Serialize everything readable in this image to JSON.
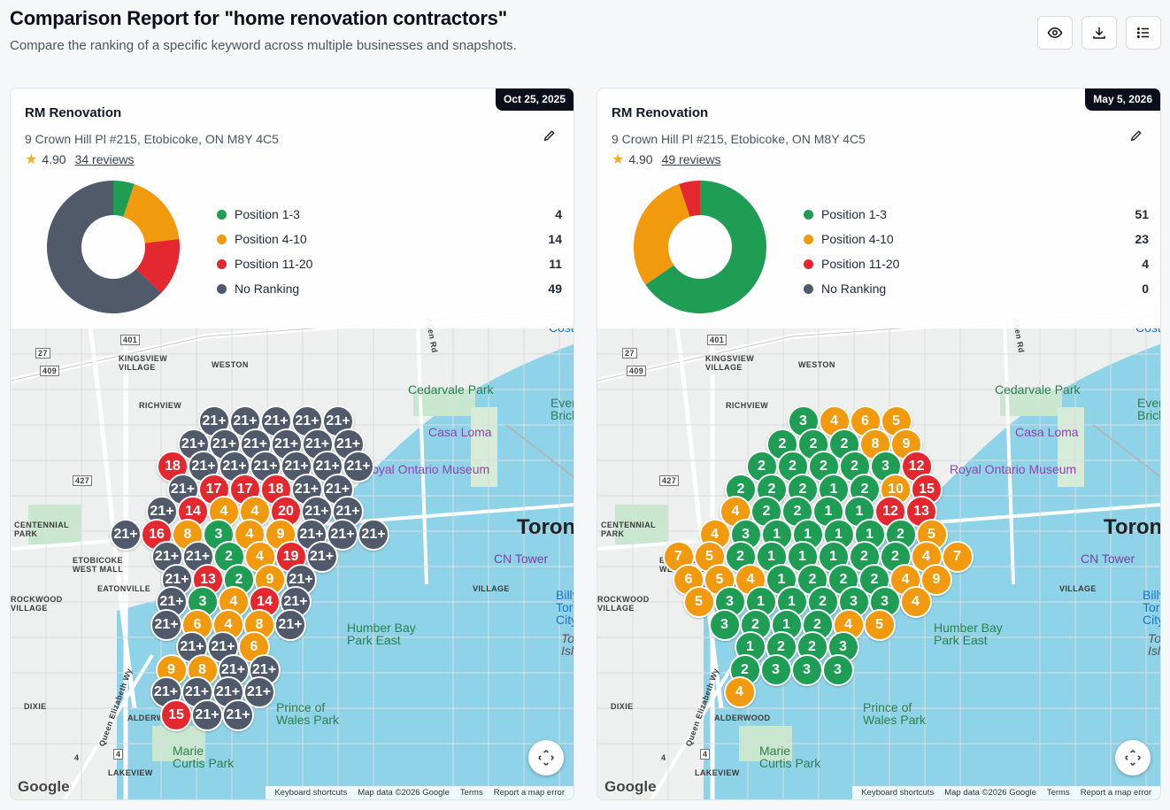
{
  "page": {
    "title": "Comparison Report for \"home renovation contractors\"",
    "subtitle": "Compare the ranking of a specific keyword across multiple businesses and snapshots."
  },
  "toolbar": {
    "view_icon": "eye-icon",
    "download_icon": "download-icon",
    "list_icon": "list-icon"
  },
  "colors": {
    "top3": "#1f9d55",
    "top10": "#f29a0e",
    "top20": "#e3282f",
    "none": "#515a6b"
  },
  "legend_labels": [
    "Position 1-3",
    "Position 4-10",
    "Position 11-20",
    "No Ranking"
  ],
  "map_labels": {
    "kingsview": "KINGSVIEW\nVILLAGE",
    "weston": "WESTON",
    "richview": "RICHVIEW",
    "centennial": "CENTENNIAL\nPARK",
    "etobicoke": "ETOBICOKE\nWEST MALL",
    "eatonville": "EATONVILLE",
    "rockwood": "ROCKWOOD\nVILLAGE",
    "dixie": "DIXIE",
    "alderwood": "ALDERWOOD",
    "lakeview": "LAKEVIEW",
    "village": "VILLAGE",
    "cedarvale": "Cedarvale Park",
    "casa_loma": "Casa Loma",
    "museum": "Royal Ontario Museum",
    "cn_tower": "CN Tower",
    "toronto": "Toronto",
    "humber": "Humber Bay\nPark East",
    "prince": "Prince of\nWales Park",
    "marie": "Marie\nCurtis Park",
    "queen": "Queen Elizabeth Wy",
    "evergreen": "Evergreen\nBrick Works",
    "billy": "Billy\nToronto\nCity",
    "toronto_island": "Toronto\nIsland",
    "costi": "Costi",
    "allen_rd": "Allen Rd",
    "hwy401": "401",
    "hwy27": "27",
    "hwy409": "409",
    "hwy427": "427",
    "hwy4": "4"
  },
  "map_footer": {
    "google": "Google",
    "shortcuts": "Keyboard shortcuts",
    "data": "Map data ©2026 Google",
    "terms": "Terms",
    "report": "Report a map error"
  },
  "snapshots": [
    {
      "date": "Oct 25, 2025",
      "business": "RM Renovation",
      "address": "9 Crown Hill Pl #215, Etobicoke, ON M8Y 4C5",
      "rating": "4.90",
      "reviews": "34 reviews",
      "counts": [
        4,
        14,
        11,
        49
      ],
      "counts_text": [
        "4",
        "14",
        "11",
        "49"
      ],
      "pins": [
        [
          "21+",
          "n"
        ],
        [
          "21+",
          "n"
        ],
        [
          "21+",
          "n"
        ],
        [
          "21+",
          "n"
        ],
        [
          "21+",
          "n"
        ],
        [
          "21+",
          "n"
        ],
        [
          "21+",
          "n"
        ],
        [
          "21+",
          "n"
        ],
        [
          "21+",
          "n"
        ],
        [
          "21+",
          "n"
        ],
        [
          "21+",
          "n"
        ],
        [
          "18",
          "r"
        ],
        [
          "21+",
          "n"
        ],
        [
          "21+",
          "n"
        ],
        [
          "21+",
          "n"
        ],
        [
          "21+",
          "n"
        ],
        [
          "21+",
          "n"
        ],
        [
          "21+",
          "n"
        ],
        [
          "21+",
          "n"
        ],
        [
          "17",
          "r"
        ],
        [
          "17",
          "r"
        ],
        [
          "18",
          "r"
        ],
        [
          "21+",
          "n"
        ],
        [
          "21+",
          "n"
        ],
        [
          "21+",
          "n"
        ],
        [
          "14",
          "r"
        ],
        [
          "4",
          "o"
        ],
        [
          "4",
          "o"
        ],
        [
          "20",
          "r"
        ],
        [
          "21+",
          "n"
        ],
        [
          "21+",
          "n"
        ],
        [
          "21+",
          "n"
        ],
        [
          "16",
          "r"
        ],
        [
          "8",
          "o"
        ],
        [
          "3",
          "g"
        ],
        [
          "4",
          "o"
        ],
        [
          "9",
          "o"
        ],
        [
          "21+",
          "n"
        ],
        [
          "21+",
          "n"
        ],
        [
          "21+",
          "n"
        ],
        [
          "21+",
          "n"
        ],
        [
          "21+",
          "n"
        ],
        [
          "2",
          "g"
        ],
        [
          "4",
          "o"
        ],
        [
          "19",
          "r"
        ],
        [
          "21+",
          "n"
        ],
        [
          "21+",
          "n"
        ],
        [
          "13",
          "r"
        ],
        [
          "2",
          "g"
        ],
        [
          "9",
          "o"
        ],
        [
          "21+",
          "n"
        ],
        [
          "21+",
          "n"
        ],
        [
          "3",
          "g"
        ],
        [
          "4",
          "o"
        ],
        [
          "14",
          "r"
        ],
        [
          "21+",
          "n"
        ],
        [
          "21+",
          "n"
        ],
        [
          "6",
          "o"
        ],
        [
          "4",
          "o"
        ],
        [
          "8",
          "o"
        ],
        [
          "21+",
          "n"
        ],
        [
          "21+",
          "n"
        ],
        [
          "21+",
          "n"
        ],
        [
          "6",
          "o"
        ],
        [
          "9",
          "o"
        ],
        [
          "8",
          "o"
        ],
        [
          "21+",
          "n"
        ],
        [
          "21+",
          "n"
        ],
        [
          "21+",
          "n"
        ],
        [
          "21+",
          "n"
        ],
        [
          "21+",
          "n"
        ],
        [
          "21+",
          "n"
        ],
        [
          "15",
          "r"
        ],
        [
          "21+",
          "n"
        ],
        [
          "21+",
          "n"
        ],
        [
          "21+",
          "n"
        ],
        [
          "21+",
          "n"
        ],
        [
          "21+",
          "n"
        ],
        [
          "21+",
          "n"
        ],
        [
          "21+",
          "n"
        ]
      ]
    },
    {
      "date": "May 5, 2026",
      "business": "RM Renovation",
      "address": "9 Crown Hill Pl #215, Etobicoke, ON M8Y 4C5",
      "rating": "4.90",
      "reviews": "49 reviews",
      "counts": [
        51,
        23,
        4,
        0
      ],
      "counts_text": [
        "51",
        "23",
        "4",
        "0"
      ],
      "pins": [
        [
          "3",
          "g"
        ],
        [
          "4",
          "o"
        ],
        [
          "6",
          "o"
        ],
        [
          "5",
          "o"
        ],
        [
          "2",
          "g"
        ],
        [
          "2",
          "g"
        ],
        [
          "2",
          "g"
        ],
        [
          "8",
          "o"
        ],
        [
          "9",
          "o"
        ],
        [
          "2",
          "g"
        ],
        [
          "2",
          "g"
        ],
        [
          "2",
          "g"
        ],
        [
          "2",
          "g"
        ],
        [
          "3",
          "g"
        ],
        [
          "12",
          "r"
        ],
        [
          "2",
          "g"
        ],
        [
          "2",
          "g"
        ],
        [
          "2",
          "g"
        ],
        [
          "1",
          "g"
        ],
        [
          "2",
          "g"
        ],
        [
          "10",
          "o"
        ],
        [
          "15",
          "r"
        ],
        [
          "4",
          "o"
        ],
        [
          "2",
          "g"
        ],
        [
          "2",
          "g"
        ],
        [
          "1",
          "g"
        ],
        [
          "1",
          "g"
        ],
        [
          "12",
          "r"
        ],
        [
          "13",
          "r"
        ],
        [
          "4",
          "o"
        ],
        [
          "3",
          "g"
        ],
        [
          "1",
          "g"
        ],
        [
          "1",
          "g"
        ],
        [
          "1",
          "g"
        ],
        [
          "1",
          "g"
        ],
        [
          "2",
          "g"
        ],
        [
          "5",
          "o"
        ],
        [
          "7",
          "o"
        ],
        [
          "5",
          "o"
        ],
        [
          "2",
          "g"
        ],
        [
          "1",
          "g"
        ],
        [
          "1",
          "g"
        ],
        [
          "1",
          "g"
        ],
        [
          "2",
          "g"
        ],
        [
          "2",
          "g"
        ],
        [
          "4",
          "o"
        ],
        [
          "7",
          "o"
        ],
        [
          "6",
          "o"
        ],
        [
          "5",
          "o"
        ],
        [
          "4",
          "o"
        ],
        [
          "1",
          "g"
        ],
        [
          "2",
          "g"
        ],
        [
          "2",
          "g"
        ],
        [
          "2",
          "g"
        ],
        [
          "4",
          "o"
        ],
        [
          "9",
          "o"
        ],
        [
          "5",
          "o"
        ],
        [
          "3",
          "g"
        ],
        [
          "1",
          "g"
        ],
        [
          "1",
          "g"
        ],
        [
          "2",
          "g"
        ],
        [
          "3",
          "g"
        ],
        [
          "3",
          "g"
        ],
        [
          "4",
          "o"
        ],
        [
          "3",
          "g"
        ],
        [
          "2",
          "g"
        ],
        [
          "1",
          "g"
        ],
        [
          "2",
          "g"
        ],
        [
          "4",
          "o"
        ],
        [
          "5",
          "o"
        ],
        [
          "1",
          "g"
        ],
        [
          "2",
          "g"
        ],
        [
          "2",
          "g"
        ],
        [
          "3",
          "g"
        ],
        [
          "2",
          "g"
        ],
        [
          "3",
          "g"
        ],
        [
          "3",
          "g"
        ],
        [
          "3",
          "g"
        ],
        [
          "4",
          "o"
        ]
      ]
    }
  ]
}
